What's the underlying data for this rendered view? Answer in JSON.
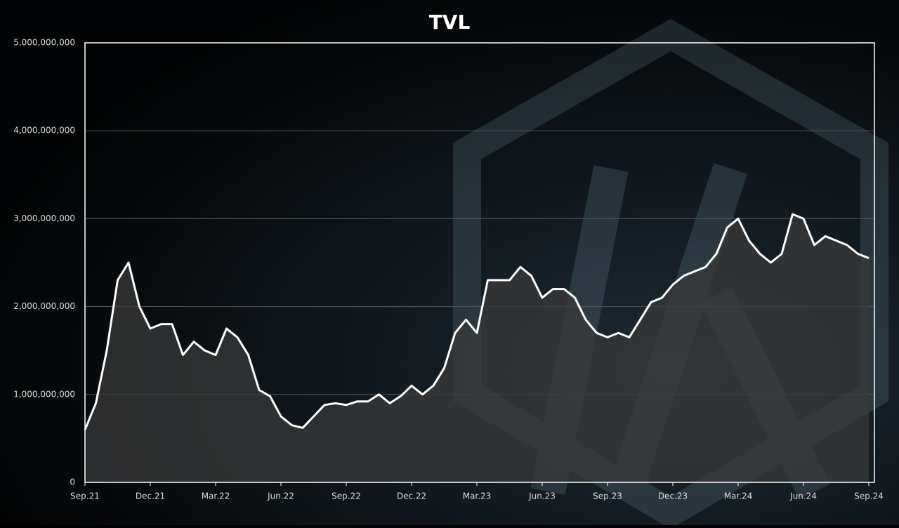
{
  "chart_data": {
    "type": "area",
    "title": "TVL",
    "categories": [
      "Sep.21",
      null,
      null,
      null,
      null,
      null,
      "Dec.21",
      null,
      null,
      null,
      null,
      null,
      "Mar.22",
      null,
      null,
      null,
      null,
      null,
      "Jun.22",
      null,
      null,
      null,
      null,
      null,
      "Sep.22",
      null,
      null,
      null,
      null,
      null,
      "Dec.22",
      null,
      null,
      null,
      null,
      null,
      "Mar.23",
      null,
      null,
      null,
      null,
      null,
      "Jun.23",
      null,
      null,
      null,
      null,
      null,
      "Sep.23",
      null,
      null,
      null,
      null,
      null,
      "Dec.23",
      null,
      null,
      null,
      null,
      null,
      "Mar.24",
      null,
      null,
      null,
      null,
      null,
      "Jun.24",
      null,
      null,
      null,
      null,
      null,
      "Sep.24"
    ],
    "values": [
      600000000,
      900000000,
      1500000000,
      2300000000,
      2500000000,
      2000000000,
      1750000000,
      1800000000,
      1800000000,
      1450000000,
      1600000000,
      1500000000,
      1450000000,
      1750000000,
      1650000000,
      1450000000,
      1050000000,
      980000000,
      750000000,
      650000000,
      620000000,
      750000000,
      880000000,
      900000000,
      880000000,
      920000000,
      920000000,
      1000000000,
      900000000,
      980000000,
      1100000000,
      1000000000,
      1100000000,
      1300000000,
      1700000000,
      1850000000,
      1700000000,
      2300000000,
      2300000000,
      2300000000,
      2450000000,
      2350000000,
      2100000000,
      2200000000,
      2200000000,
      2100000000,
      1850000000,
      1700000000,
      1650000000,
      1700000000,
      1650000000,
      1850000000,
      2050000000,
      2100000000,
      2250000000,
      2350000000,
      2400000000,
      2450000000,
      2600000000,
      2900000000,
      3000000000,
      2750000000,
      2600000000,
      2500000000,
      2600000000,
      3050000000,
      3000000000,
      2700000000,
      2800000000,
      2750000000,
      2700000000,
      2600000000,
      2550000000
    ],
    "color": "#ffffff",
    "fill_color": "#3a3a3a",
    "ylim": [
      0,
      5000000000
    ],
    "yticks": [
      0,
      {
        "value": 1000000000,
        "label": "1,000,000,000"
      },
      {
        "value": 2000000000,
        "label": "2,000,000,000"
      },
      {
        "value": 3000000000,
        "label": "3,000,000,000"
      },
      {
        "value": 4000000000,
        "label": "4,000,000,000"
      },
      {
        "value": 5000000000,
        "label": "5,000,000,000"
      }
    ],
    "grid": true
  }
}
